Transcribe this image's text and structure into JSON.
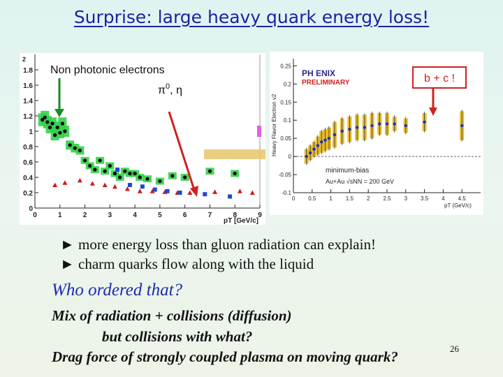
{
  "title": "Surprise: large heavy quark energy loss!",
  "left_chart": {
    "label_npe": "Non photonic electrons",
    "label_pi_pre": "π",
    "label_pi_sup": "0",
    "label_pi_post": ", η",
    "y_ticks": [
      "0",
      "0.2",
      "0.4",
      "0.6",
      "0.8",
      "1",
      "1.2",
      "1.4",
      "1.6",
      "1.8"
    ],
    "y_top_tick": "2",
    "x_ticks": [
      "0",
      "1",
      "2",
      "3",
      "4",
      "5",
      "6",
      "7",
      "8",
      "9"
    ],
    "x_label": "pT [GeV/c]",
    "colors": {
      "npe": "#000000",
      "pi0": "#d11a1a",
      "eta": "#1f49d0",
      "band": "#35d04a",
      "arrow_green": "#1b8a2a",
      "arrow_red": "#d02020"
    }
  },
  "right_chart": {
    "y_label": "Heavy Flavor Electron v2",
    "logo_phenix": "PH ENIX",
    "logo_preliminary": "PRELIMINARY",
    "box_label": "b + c !",
    "minbias": "minimum-bias",
    "collision": "Au+Au √sNN = 200 GeV",
    "y_ticks": [
      "-0.1",
      "-0.05",
      "0",
      "0.05",
      "0.1",
      "0.15",
      "0.2",
      "0.25"
    ],
    "x_ticks": [
      "0",
      "0.5",
      "1",
      "1.5",
      "2",
      "2.5",
      "3",
      "3.5",
      "4",
      "4.5"
    ],
    "x_label": "pT (GeV/c)"
  },
  "bullets": [
    "► more energy loss than gluon radiation can explain!",
    "► charm quarks flow along with the liquid"
  ],
  "question": "Who ordered that?",
  "explanation": [
    "Mix of radiation + collisions (diffusion)",
    "but collisions with what?",
    "Drag force of strongly coupled plasma on moving quark?"
  ],
  "page_number": "26",
  "chart_data": [
    {
      "type": "scatter",
      "xlim": [
        0,
        9
      ],
      "ylim": [
        0,
        2
      ],
      "grid": false,
      "series": [
        {
          "name": "Non photonic electrons",
          "color": "#000000",
          "marker": "circle",
          "x": [
            0.3,
            0.4,
            0.5,
            0.6,
            0.7,
            0.8,
            0.9,
            1.0,
            1.1,
            1.2,
            1.4,
            1.6,
            1.8,
            2.0,
            2.2,
            2.4,
            2.6,
            2.8,
            3.0,
            3.2,
            3.4,
            3.6,
            3.8,
            4.0,
            4.2,
            4.5,
            5.0,
            5.5,
            6.0,
            7.0,
            8.0
          ],
          "y": [
            1.15,
            1.18,
            1.12,
            1.05,
            1.1,
            0.95,
            1.05,
            0.98,
            1.1,
            1.0,
            0.82,
            0.78,
            0.75,
            0.62,
            0.55,
            0.5,
            0.62,
            0.48,
            0.55,
            0.45,
            0.4,
            0.48,
            0.45,
            0.45,
            0.4,
            0.38,
            0.35,
            0.42,
            0.4,
            0.48,
            0.45
          ]
        },
        {
          "name": "π0",
          "color": "#d11a1a",
          "marker": "triangle",
          "x": [
            0.8,
            1.2,
            1.8,
            2.3,
            2.8,
            3.2,
            3.7,
            4.2,
            4.7,
            5.2,
            5.7,
            6.2,
            7.2,
            8.2,
            8.7
          ],
          "y": [
            0.3,
            0.33,
            0.36,
            0.32,
            0.3,
            0.28,
            0.25,
            0.22,
            0.22,
            0.21,
            0.2,
            0.2,
            0.21,
            0.22,
            0.2
          ]
        },
        {
          "name": "η",
          "color": "#1f49d0",
          "marker": "square",
          "x": [
            3.3,
            3.8,
            4.3,
            4.8,
            5.3,
            5.8,
            6.8,
            7.8
          ],
          "y": [
            0.5,
            0.3,
            0.28,
            0.24,
            0.22,
            0.2,
            0.18,
            0.15
          ]
        }
      ]
    },
    {
      "type": "scatter",
      "xlim": [
        0,
        5
      ],
      "ylim": [
        -0.1,
        0.27
      ],
      "xlabel": "pT (GeV/c)",
      "ylabel": "Heavy Flavor Electron v2",
      "series": [
        {
          "name": "Heavy flavor electron v2",
          "color": "#1f2fc0",
          "x": [
            0.35,
            0.45,
            0.55,
            0.65,
            0.75,
            0.85,
            0.95,
            1.1,
            1.3,
            1.5,
            1.7,
            1.9,
            2.1,
            2.3,
            2.5,
            2.7,
            3.0,
            3.5,
            4.5
          ],
          "y": [
            0.0,
            0.01,
            0.02,
            0.03,
            0.04,
            0.045,
            0.05,
            0.06,
            0.07,
            0.075,
            0.08,
            0.08,
            0.085,
            0.09,
            0.09,
            0.09,
            0.085,
            0.095,
            0.085
          ],
          "err": [
            0.02,
            0.02,
            0.02,
            0.025,
            0.03,
            0.03,
            0.03,
            0.035,
            0.035,
            0.035,
            0.035,
            0.035,
            0.035,
            0.03,
            0.03,
            0.02,
            0.02,
            0.025,
            0.04
          ]
        }
      ]
    }
  ]
}
